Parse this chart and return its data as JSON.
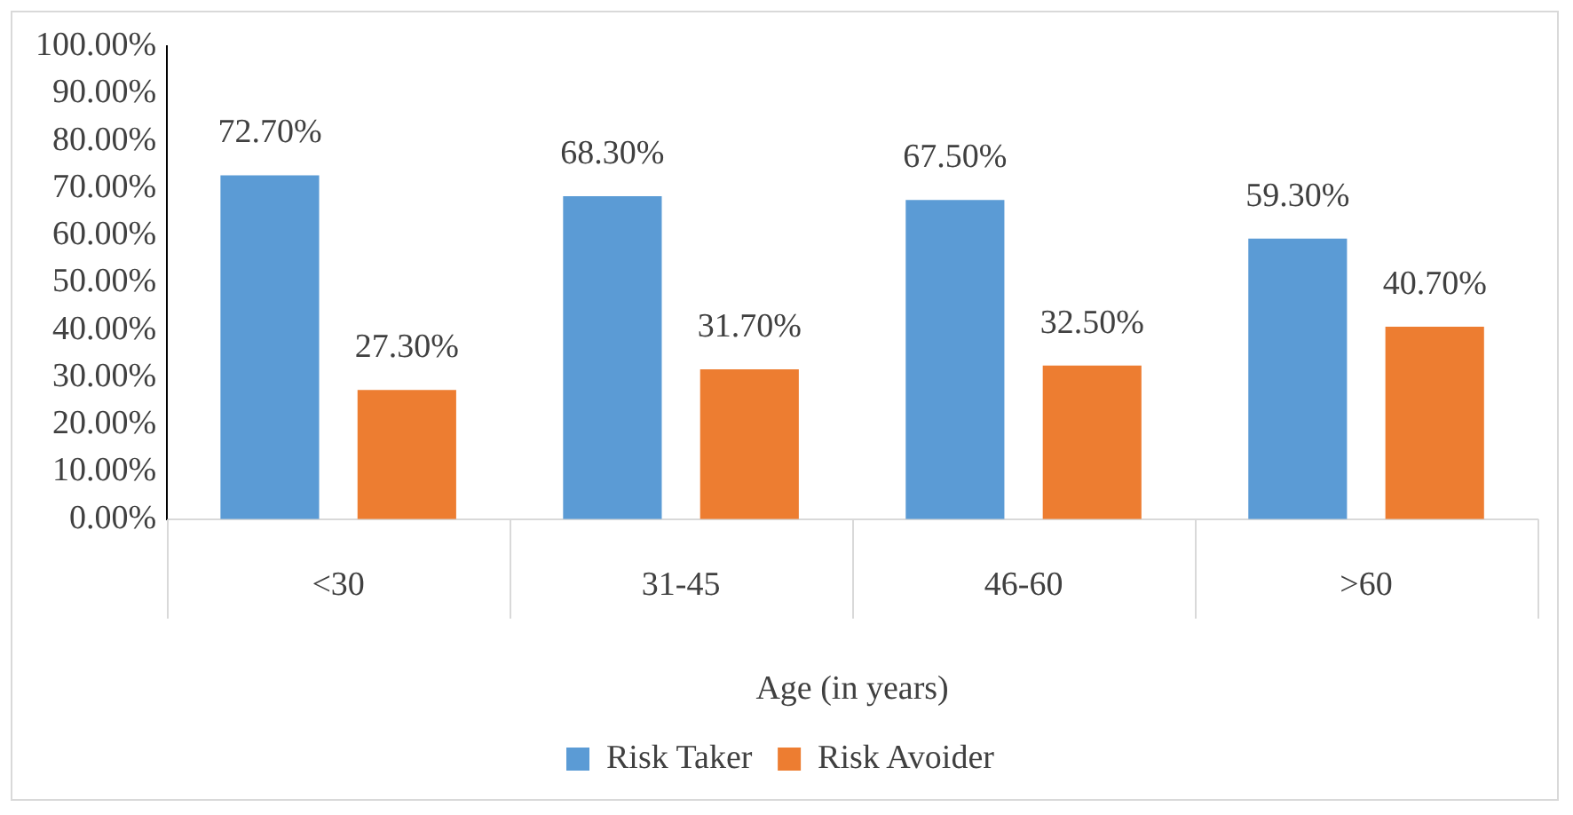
{
  "chart_data": {
    "type": "bar",
    "xlabel": "Age (in years)",
    "categories": [
      "<30",
      "31-45",
      "46-60",
      ">60"
    ],
    "series": [
      {
        "name": "Risk Taker",
        "color": "#5b9bd5",
        "values": [
          72.7,
          68.3,
          67.5,
          59.3
        ],
        "value_labels": [
          "72.70%",
          "68.30%",
          "67.50%",
          "59.30%"
        ]
      },
      {
        "name": "Risk Avoider",
        "color": "#ed7d31",
        "values": [
          27.3,
          31.7,
          32.5,
          40.7
        ],
        "value_labels": [
          "27.30%",
          "31.70%",
          "32.50%",
          "40.70%"
        ]
      }
    ],
    "ylim": [
      0,
      100
    ],
    "yticks": [
      {
        "value": 0,
        "label": "0.00%"
      },
      {
        "value": 10,
        "label": "10.00%"
      },
      {
        "value": 20,
        "label": "20.00%"
      },
      {
        "value": 30,
        "label": "30.00%"
      },
      {
        "value": 40,
        "label": "40.00%"
      },
      {
        "value": 50,
        "label": "50.00%"
      },
      {
        "value": 60,
        "label": "60.00%"
      },
      {
        "value": 70,
        "label": "70.00%"
      },
      {
        "value": 80,
        "label": "80.00%"
      },
      {
        "value": 90,
        "label": "90.00%"
      },
      {
        "value": 100,
        "label": "100.00%"
      }
    ],
    "legend": "bottom"
  }
}
